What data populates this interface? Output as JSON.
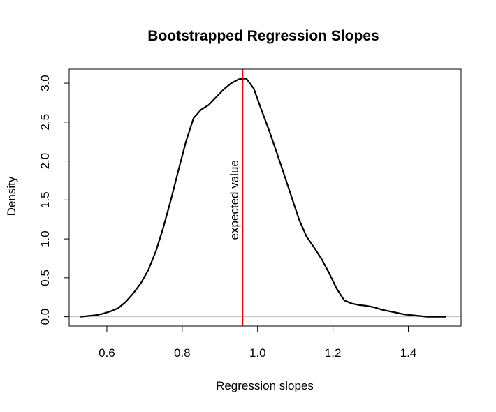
{
  "chart_data": {
    "type": "line",
    "title": "Bootstrapped Regression Slopes",
    "xlabel": "Regression slopes",
    "ylabel": "Density",
    "xlim": [
      0.5,
      1.54
    ],
    "ylim": [
      -0.12,
      3.18
    ],
    "grid": false,
    "x_ticks": [
      "0.6",
      "0.8",
      "1.0",
      "1.2",
      "1.4"
    ],
    "y_ticks": [
      "0.0",
      "0.5",
      "1.0",
      "1.5",
      "2.0",
      "2.5",
      "3.0"
    ],
    "series": [
      {
        "color": "#000000",
        "x": [
          0.53,
          0.55,
          0.57,
          0.59,
          0.61,
          0.63,
          0.65,
          0.67,
          0.69,
          0.71,
          0.73,
          0.75,
          0.77,
          0.79,
          0.81,
          0.83,
          0.85,
          0.87,
          0.89,
          0.91,
          0.93,
          0.95,
          0.97,
          0.99,
          1.01,
          1.03,
          1.05,
          1.07,
          1.09,
          1.11,
          1.13,
          1.15,
          1.17,
          1.19,
          1.21,
          1.23,
          1.25,
          1.27,
          1.29,
          1.31,
          1.33,
          1.35,
          1.37,
          1.39,
          1.41,
          1.43,
          1.45,
          1.47,
          1.49,
          1.5
        ],
        "y": [
          0.0,
          0.01,
          0.02,
          0.04,
          0.07,
          0.11,
          0.19,
          0.3,
          0.43,
          0.6,
          0.84,
          1.15,
          1.5,
          1.88,
          2.25,
          2.55,
          2.66,
          2.72,
          2.82,
          2.92,
          3.0,
          3.05,
          3.06,
          2.93,
          2.66,
          2.4,
          2.12,
          1.83,
          1.54,
          1.25,
          1.03,
          0.89,
          0.74,
          0.56,
          0.36,
          0.21,
          0.17,
          0.15,
          0.14,
          0.12,
          0.09,
          0.07,
          0.05,
          0.03,
          0.02,
          0.01,
          0.0,
          0.0,
          0.0,
          0.0
        ]
      }
    ],
    "reference_lines": [
      {
        "orientation": "vertical",
        "x": 0.96,
        "color": "#ff0000",
        "label": "expected value"
      },
      {
        "orientation": "horizontal",
        "y": 0.0,
        "color": "#bebebe"
      }
    ]
  }
}
